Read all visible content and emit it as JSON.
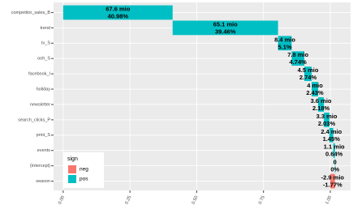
{
  "chart_data": {
    "type": "waterfall",
    "categories": [
      "competitor_sales_B",
      "trend",
      "tv_S",
      "ooh_S",
      "facebook_I",
      "holiday",
      "newsletter",
      "search_clicks_P",
      "print_S",
      "events",
      "(Intercept)",
      "season"
    ],
    "values": [
      0.4098,
      0.3946,
      0.051,
      0.0474,
      0.0274,
      0.0243,
      0.0218,
      0.0203,
      0.0145,
      0.0064,
      0,
      -0.0177
    ],
    "value_labels": [
      "40.98%",
      "39.46%",
      "5.1%",
      "4.74%",
      "2.74%",
      "2.43%",
      "2.18%",
      "2.03%",
      "1.45%",
      "0.64%",
      "0%",
      "-1.77%"
    ],
    "effect_labels": [
      "67.6 mio",
      "65.1 mio",
      "8.4 mio",
      "7.8 mio",
      "4.5 mio",
      "4 mio",
      "3.6 mio",
      "3.3 mio",
      "2.4 mio",
      "1.1 mio",
      "0",
      "-2.9 mio"
    ],
    "signs": [
      "pos",
      "pos",
      "pos",
      "pos",
      "pos",
      "pos",
      "pos",
      "pos",
      "pos",
      "pos",
      "pos",
      "neg"
    ],
    "legend": {
      "title": "sign",
      "items": [
        {
          "name": "neg",
          "color": "#F8766D"
        },
        {
          "name": "pos",
          "color": "#00BFC4"
        }
      ]
    },
    "xlim": [
      -0.036,
      1.076
    ],
    "xticks": [
      {
        "value": 0,
        "label": "0.00"
      },
      {
        "value": 0.25,
        "label": "0.25"
      },
      {
        "value": 0.5,
        "label": "0.50"
      },
      {
        "value": 0.75,
        "label": "0.75"
      },
      {
        "value": 1,
        "label": "1.00"
      }
    ],
    "grid": true
  }
}
